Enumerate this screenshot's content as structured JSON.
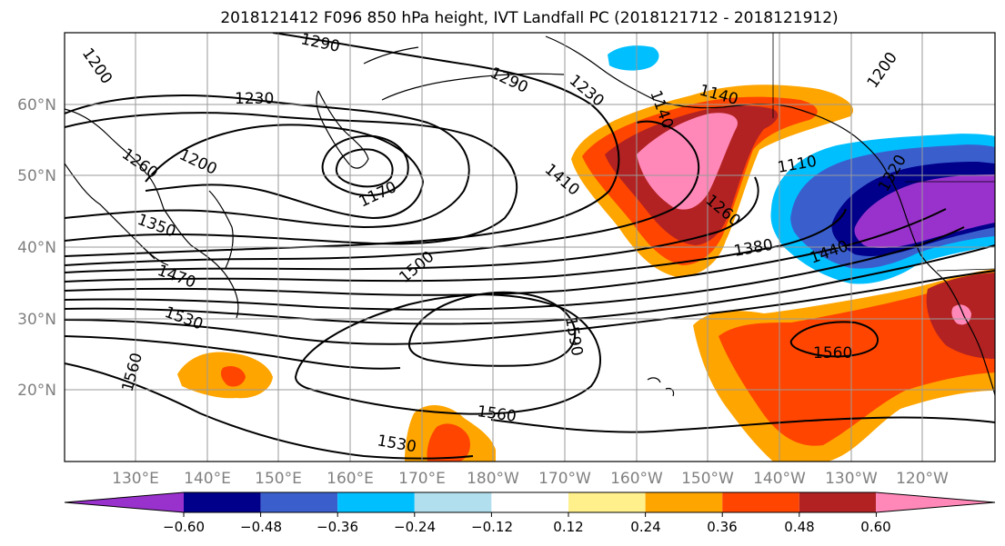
{
  "title": "2018121412 F096 850 hPa height, IVT Landfall PC (2018121712 - 2018121912)",
  "map": {
    "lat_labels": [
      "60°N",
      "50°N",
      "40°N",
      "30°N",
      "20°N"
    ],
    "lon_labels": [
      "130°E",
      "140°E",
      "150°E",
      "160°E",
      "170°E",
      "180°W",
      "170°W",
      "160°W",
      "150°W",
      "140°W",
      "130°W",
      "120°W"
    ],
    "contour_labels": [
      "1200",
      "1290",
      "1230",
      "1290",
      "1230",
      "1140",
      "1140",
      "1200",
      "1260",
      "1200",
      "1170",
      "1410",
      "1260",
      "1110",
      "1320",
      "1350",
      "1380",
      "1440",
      "1470",
      "1500",
      "1530",
      "1560",
      "1590",
      "1560",
      "1560",
      "1530"
    ]
  },
  "colorbar": {
    "ticks": [
      "−0.60",
      "−0.48",
      "−0.36",
      "−0.24",
      "−0.12",
      "0.12",
      "0.24",
      "0.36",
      "0.48",
      "0.60"
    ],
    "colors": [
      "#9932cc",
      "#00008b",
      "#3a5fcd",
      "#00bfff",
      "#b2dfee",
      "#ffffff",
      "#fff08c",
      "#ffa500",
      "#ff4500",
      "#b22222",
      "#ff88b8"
    ]
  }
}
